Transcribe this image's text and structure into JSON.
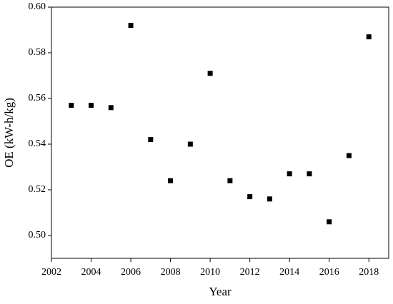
{
  "chart_data": {
    "type": "scatter",
    "x_label": "Year",
    "y_label": "OE (kW-h/kg)",
    "x": [
      2003,
      2004,
      2005,
      2006,
      2007,
      2008,
      2009,
      2010,
      2011,
      2012,
      2013,
      2014,
      2015,
      2016,
      2017,
      2018
    ],
    "values": [
      0.557,
      0.557,
      0.556,
      0.592,
      0.542,
      0.524,
      0.54,
      0.571,
      0.524,
      0.517,
      0.516,
      0.527,
      0.527,
      0.506,
      0.535,
      0.587
    ],
    "color": "#000000",
    "xlim": [
      2002,
      2019
    ],
    "xticks": [
      2002,
      2004,
      2006,
      2008,
      2010,
      2012,
      2014,
      2016,
      2018
    ],
    "ylim": [
      0.49,
      0.6
    ],
    "yticks": [
      {
        "value": 0.5,
        "label": "0.50"
      },
      0.52,
      0.54,
      0.56,
      0.58,
      {
        "value": 0.6,
        "label": "0.60"
      }
    ]
  }
}
